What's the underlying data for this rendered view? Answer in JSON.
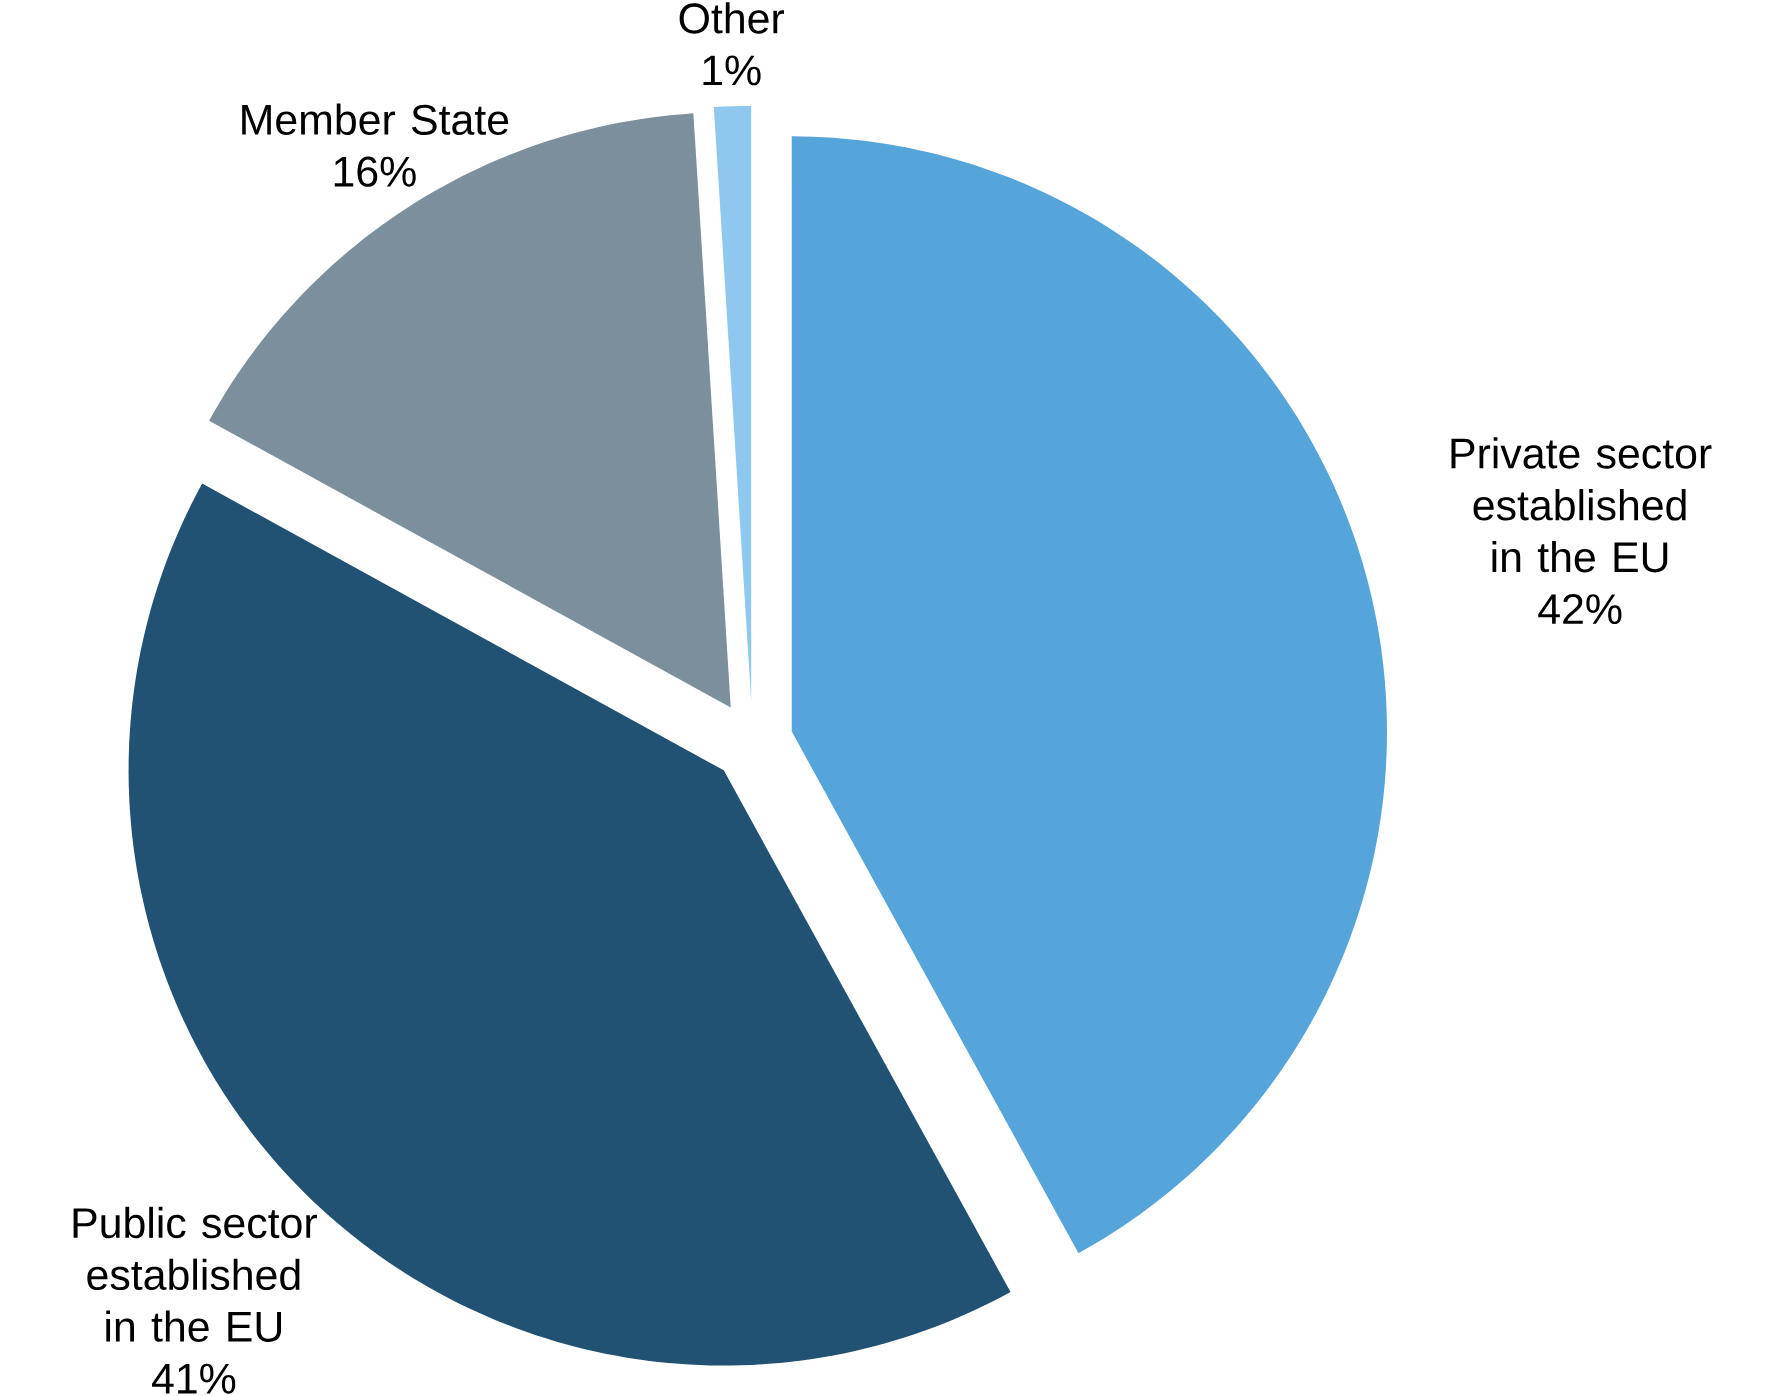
{
  "chart_data": {
    "type": "pie",
    "categories": [
      "Private sector established in the EU",
      "Public sector established in the EU",
      "Member State",
      "Other"
    ],
    "values": [
      42,
      41,
      16,
      1
    ],
    "colors": [
      "#55a4da",
      "#215173",
      "#7b8f9d",
      "#8ec8ee"
    ],
    "value_labels": [
      "42%",
      "41%",
      "16%",
      "1%"
    ]
  }
}
